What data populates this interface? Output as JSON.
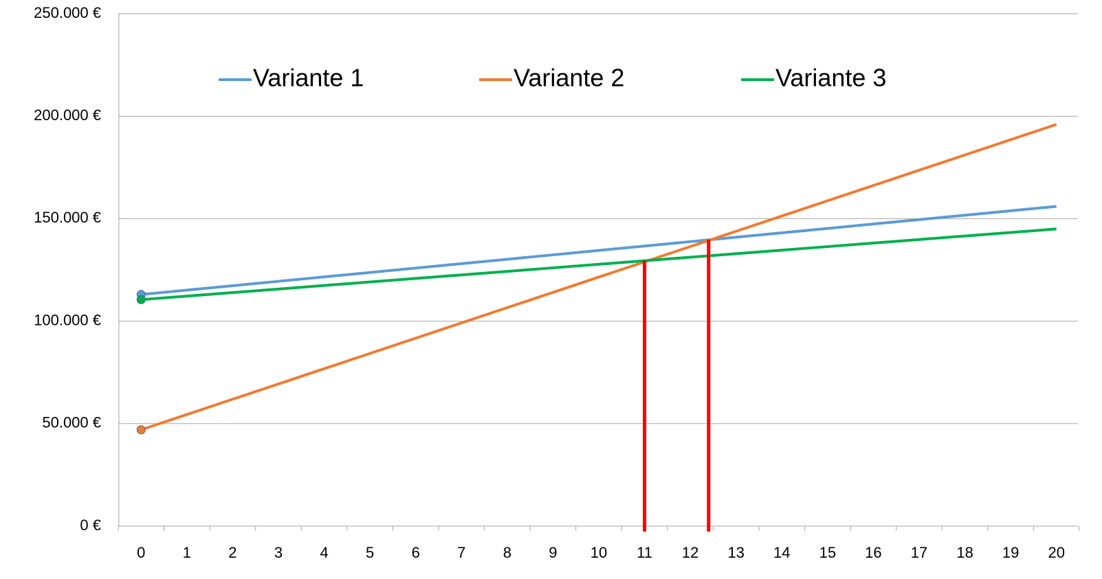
{
  "chart_data": {
    "type": "line",
    "categories": [
      "0",
      "1",
      "2",
      "3",
      "4",
      "5",
      "6",
      "7",
      "8",
      "9",
      "10",
      "11",
      "12",
      "13",
      "14",
      "15",
      "16",
      "17",
      "18",
      "19",
      "20"
    ],
    "series": [
      {
        "name": "Variante 1",
        "color": "#5b9bd5",
        "values": [
          113000,
          115150,
          117300,
          119450,
          121600,
          123750,
          125900,
          128050,
          130200,
          132350,
          134500,
          136650,
          138800,
          140950,
          143100,
          145250,
          147400,
          149550,
          151700,
          153850,
          156000
        ]
      },
      {
        "name": "Variante 2",
        "color": "#ed7d31",
        "values": [
          47000,
          54450,
          61900,
          69350,
          76800,
          84250,
          91700,
          99150,
          106600,
          114050,
          121500,
          128950,
          136400,
          143850,
          151300,
          158750,
          166200,
          173650,
          181100,
          188550,
          196000
        ]
      },
      {
        "name": "Variante 3",
        "color": "#00b050",
        "values": [
          110500,
          112225,
          113950,
          115675,
          117400,
          119125,
          120850,
          122575,
          124300,
          126025,
          127750,
          129475,
          131200,
          132925,
          134650,
          136375,
          138100,
          139825,
          141550,
          143275,
          145000
        ]
      }
    ],
    "ylim": [
      0,
      250000
    ],
    "yticks": [
      {
        "value": 0,
        "label": "0 €"
      },
      {
        "value": 50000,
        "label": "50.000 €"
      },
      {
        "value": 100000,
        "label": "100.000 €"
      },
      {
        "value": 150000,
        "label": "150.000 €"
      },
      {
        "value": 200000,
        "label": "200.000 €"
      },
      {
        "value": 250000,
        "label": "250.000 €"
      }
    ],
    "grid": true,
    "legend": "top",
    "vlines": [
      {
        "x": 11,
        "y": 129500,
        "color": "#ff0000"
      },
      {
        "x": 12.4,
        "y": 139700,
        "color": "#ff0000"
      }
    ]
  }
}
